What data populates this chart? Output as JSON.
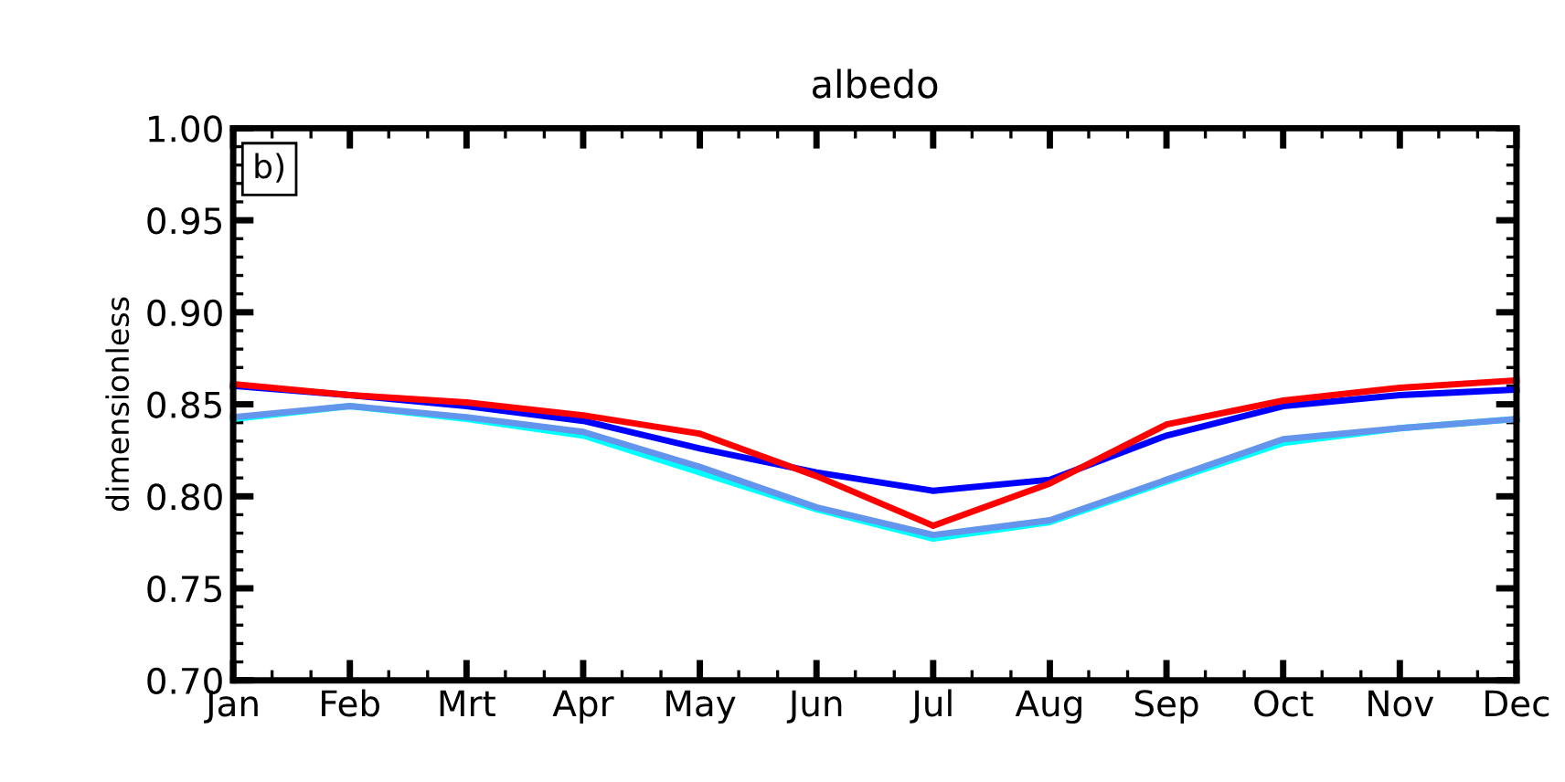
{
  "chart_data": {
    "type": "line",
    "title": "albedo",
    "ylabel": "dimensionless",
    "categories": [
      "Jan",
      "Feb",
      "Mrt",
      "Apr",
      "May",
      "Jun",
      "Jul",
      "Aug",
      "Sep",
      "Oct",
      "Nov",
      "Dec"
    ],
    "ylim": [
      0.7,
      1.0
    ],
    "yticks": [
      {
        "value": 0.7,
        "label": "0.70"
      },
      {
        "value": 0.75,
        "label": "0.75"
      },
      {
        "value": 0.8,
        "label": "0.80"
      },
      {
        "value": 0.85,
        "label": "0.85"
      },
      {
        "value": 0.9,
        "label": "0.90"
      },
      {
        "value": 0.95,
        "label": "0.95"
      },
      {
        "value": 1.0,
        "label": "1.00"
      }
    ],
    "grid": false,
    "marker": "none",
    "line_style": "solid",
    "annotations": [
      "b)"
    ],
    "series": [
      {
        "color": "#00ffff",
        "values": [
          0.842,
          0.849,
          0.842,
          0.833,
          0.813,
          0.793,
          0.777,
          0.786,
          0.808,
          0.829,
          0.837,
          0.842
        ]
      },
      {
        "color": "#6495ed",
        "values": [
          0.843,
          0.849,
          0.843,
          0.835,
          0.816,
          0.794,
          0.779,
          0.787,
          0.809,
          0.831,
          0.837,
          0.842
        ]
      },
      {
        "color": "#0000ff",
        "values": [
          0.86,
          0.855,
          0.849,
          0.841,
          0.826,
          0.813,
          0.803,
          0.809,
          0.833,
          0.849,
          0.855,
          0.858
        ]
      },
      {
        "color": "#ff0000",
        "values": [
          0.861,
          0.855,
          0.851,
          0.844,
          0.834,
          0.811,
          0.784,
          0.807,
          0.839,
          0.852,
          0.859,
          0.863
        ]
      }
    ]
  }
}
